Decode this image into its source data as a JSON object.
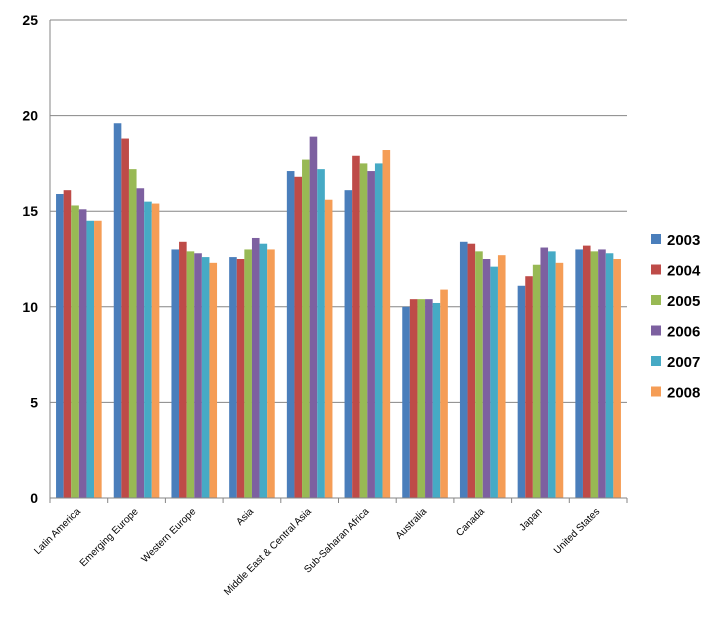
{
  "chart_data": {
    "type": "bar",
    "title": "",
    "xlabel": "",
    "ylabel": "",
    "ylim": [
      0,
      25
    ],
    "yticks": [
      0,
      5,
      10,
      15,
      20,
      25
    ],
    "grid": true,
    "legend_position": "right",
    "categories": [
      "Latin America",
      "Emerging Europe",
      "Western Europe",
      "Asia",
      "Middle East & Central Asia",
      "Sub-Saharan Africa",
      "Australia",
      "Canada",
      "Japan",
      "United States"
    ],
    "series": [
      {
        "name": "2003",
        "color": "#4A7EBB",
        "values": [
          15.9,
          19.6,
          13.0,
          12.6,
          17.1,
          16.1,
          10.0,
          13.4,
          11.1,
          13.0
        ]
      },
      {
        "name": "2004",
        "color": "#BE4B48",
        "values": [
          16.1,
          18.8,
          13.4,
          12.5,
          16.8,
          17.9,
          10.4,
          13.3,
          11.6,
          13.2
        ]
      },
      {
        "name": "2005",
        "color": "#98B954",
        "values": [
          15.3,
          17.2,
          12.9,
          13.0,
          17.7,
          17.5,
          10.4,
          12.9,
          12.2,
          12.9
        ]
      },
      {
        "name": "2006",
        "color": "#7D60A0",
        "values": [
          15.1,
          16.2,
          12.8,
          13.6,
          18.9,
          17.1,
          10.4,
          12.5,
          13.1,
          13.0
        ]
      },
      {
        "name": "2007",
        "color": "#46AAC5",
        "values": [
          14.5,
          15.5,
          12.6,
          13.3,
          17.2,
          17.5,
          10.2,
          12.1,
          12.9,
          12.8
        ]
      },
      {
        "name": "2008",
        "color": "#F59D56",
        "values": [
          14.5,
          15.4,
          12.3,
          13.0,
          15.6,
          18.2,
          10.9,
          12.7,
          12.3,
          12.5
        ]
      }
    ]
  }
}
